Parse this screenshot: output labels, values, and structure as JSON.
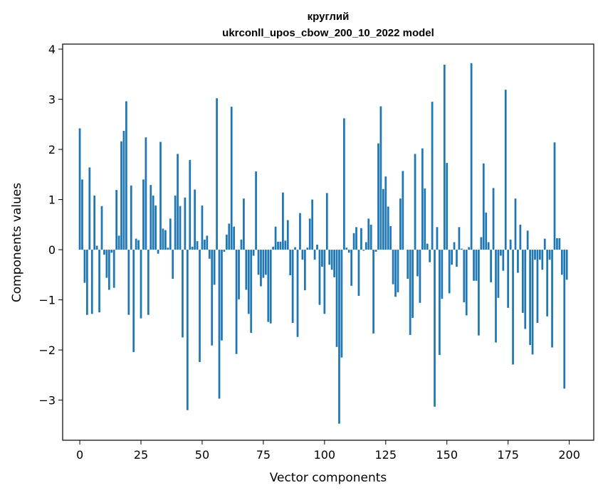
{
  "chart_data": {
    "type": "bar",
    "title_line1": "круглий",
    "title_line2": "ukrconll_upos_cbow_200_10_2022 model",
    "xlabel": "Vector components",
    "ylabel": "Components values",
    "xlim": [
      -7,
      210
    ],
    "ylim": [
      -3.8,
      4.1
    ],
    "x_ticks": [
      0,
      25,
      50,
      75,
      100,
      125,
      150,
      175,
      200
    ],
    "y_ticks": [
      -3,
      -2,
      -1,
      0,
      1,
      2,
      3,
      4
    ],
    "x_tick_labels": [
      "0",
      "25",
      "50",
      "75",
      "100",
      "125",
      "150",
      "175",
      "200"
    ],
    "y_tick_labels": [
      "−3",
      "−2",
      "−1",
      "0",
      "1",
      "2",
      "3",
      "4"
    ],
    "color": "#1f77b4",
    "values": [
      2.42,
      1.4,
      -0.66,
      -1.3,
      1.64,
      -1.28,
      1.08,
      0.08,
      -1.25,
      0.87,
      -0.1,
      -0.56,
      -0.8,
      -0.06,
      -0.76,
      1.19,
      0.28,
      2.16,
      2.37,
      2.96,
      -1.3,
      1.28,
      -2.04,
      0.22,
      0.19,
      -1.37,
      1.4,
      2.24,
      -1.3,
      1.29,
      1.08,
      0.88,
      -0.08,
      2.15,
      0.42,
      0.39,
      0.04,
      0.62,
      -0.58,
      1.08,
      1.91,
      0.87,
      -1.75,
      1.04,
      -3.2,
      1.79,
      0.06,
      1.2,
      0.17,
      -2.24,
      0.88,
      0.2,
      0.28,
      -0.18,
      -1.91,
      -0.7,
      3.02,
      -2.97,
      -1.81,
      -0.04,
      0.3,
      0.52,
      2.85,
      0.46,
      -2.08,
      -0.99,
      0.2,
      1.02,
      -0.8,
      -1.28,
      -1.66,
      -0.12,
      1.56,
      -0.5,
      -0.73,
      -0.56,
      -0.5,
      -1.44,
      -1.47,
      0.06,
      0.46,
      0.16,
      0.16,
      1.14,
      0.18,
      0.59,
      -0.51,
      -1.46,
      0.05,
      -1.74,
      0.73,
      -0.2,
      -0.81,
      0.04,
      0.62,
      1.0,
      -0.2,
      0.1,
      -1.1,
      -0.34,
      -1.28,
      1.13,
      -0.3,
      -0.4,
      -0.55,
      -1.94,
      -3.47,
      -2.15,
      2.62,
      0.04,
      -0.06,
      -0.72,
      0.33,
      0.45,
      -0.92,
      0.43,
      -0.02,
      0.15,
      0.62,
      0.5,
      -1.67,
      -0.04,
      2.12,
      2.86,
      1.21,
      1.46,
      0.86,
      0.47,
      -0.69,
      -0.94,
      -0.85,
      1.02,
      1.57,
      0.0,
      -0.58,
      -1.7,
      -1.36,
      1.91,
      -0.53,
      -1.06,
      2.02,
      1.22,
      0.12,
      -0.25,
      2.95,
      -3.13,
      0.45,
      -2.1,
      -0.98,
      3.69,
      1.73,
      -0.87,
      -0.3,
      0.15,
      -0.34,
      0.45,
      0.02,
      -1.05,
      -1.31,
      0.05,
      3.72,
      -0.62,
      -0.62,
      -1.71,
      0.25,
      1.72,
      0.74,
      0.15,
      -0.65,
      1.23,
      -1.85,
      -0.96,
      -0.12,
      -0.42,
      3.19,
      -1.16,
      0.2,
      -2.29,
      1.02,
      -0.46,
      0.5,
      -1.26,
      -1.58,
      0.38,
      -1.9,
      -2.09,
      -0.2,
      -1.46,
      -0.2,
      -0.4,
      0.22,
      -1.33,
      -0.2,
      -1.95,
      2.14,
      0.23,
      0.23,
      -0.5,
      -2.77,
      -0.6
    ]
  }
}
